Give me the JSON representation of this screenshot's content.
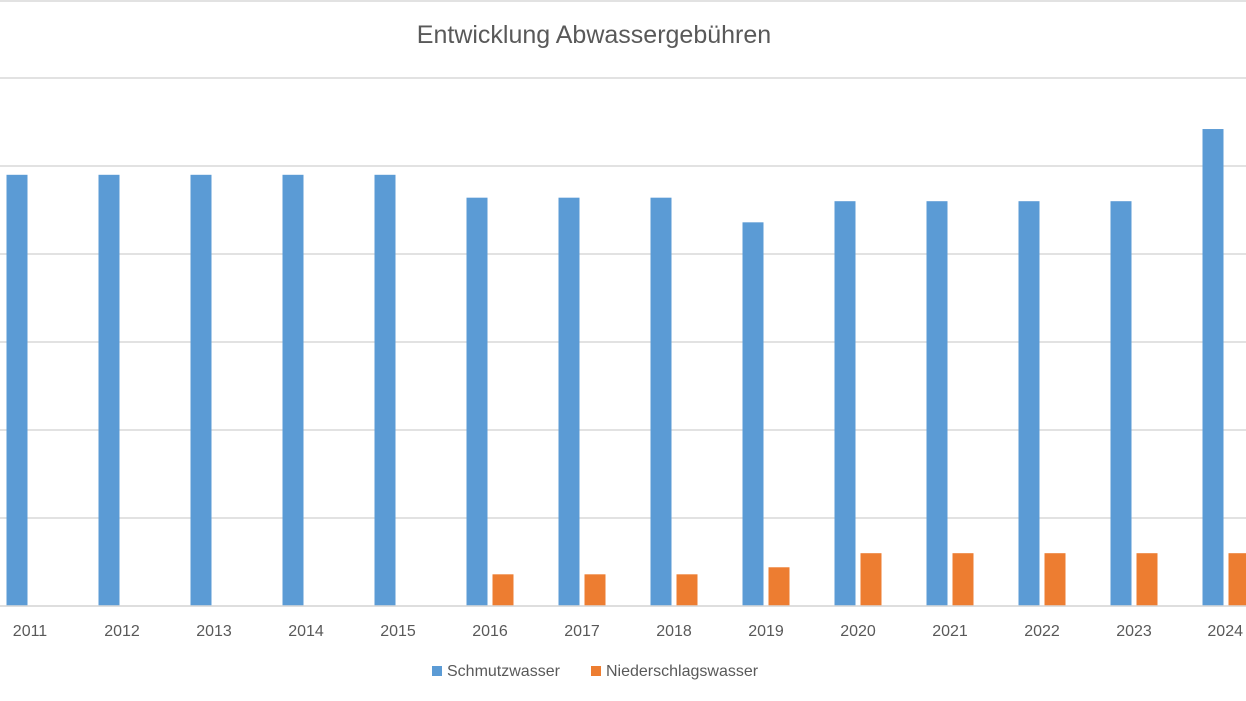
{
  "chart_data": {
    "type": "bar",
    "title": "Entwicklung Abwassergebühren",
    "xlabel": "",
    "ylabel": "",
    "categories": [
      "2011",
      "2012",
      "2013",
      "2014",
      "2015",
      "2016",
      "2017",
      "2018",
      "2019",
      "2020",
      "2021",
      "2022",
      "2023",
      "2024"
    ],
    "series": [
      {
        "name": "Schmutzwasser",
        "color": "#5B9BD5",
        "values": [
          2.45,
          2.45,
          2.45,
          2.45,
          2.45,
          2.32,
          2.32,
          2.32,
          2.18,
          2.3,
          2.3,
          2.3,
          2.3,
          2.71
        ]
      },
      {
        "name": "Niederschlagswasser",
        "color": "#ED7D31",
        "values": [
          0,
          0,
          0,
          0,
          0,
          0.18,
          0.18,
          0.18,
          0.22,
          0.3,
          0.3,
          0.3,
          0.3,
          0.3
        ]
      }
    ],
    "ylim": [
      0,
      3.0
    ],
    "ytick_step": 0.5,
    "grid": true,
    "gridline_color": "#D9D9D9",
    "legend_position": "bottom"
  }
}
